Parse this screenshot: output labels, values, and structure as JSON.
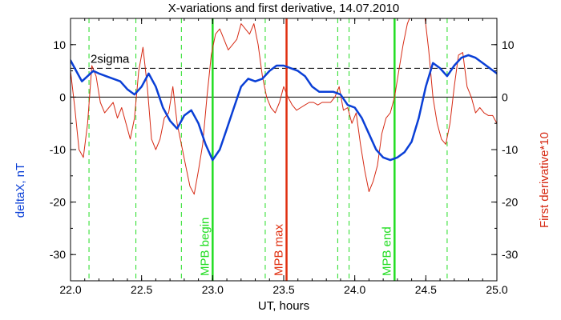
{
  "chart_data": {
    "type": "line",
    "title": "X-variations and first derivative, 14.07.2010",
    "xlabel": "UT, hours",
    "ylabel_left": "deltaX, nT",
    "ylabel_right": "First derivative*10",
    "xlim": [
      22.0,
      25.0
    ],
    "ylim": [
      -35,
      15
    ],
    "x_ticks": [
      22.0,
      22.5,
      23.0,
      23.5,
      24.0,
      24.5,
      25.0
    ],
    "x_tick_labels": [
      "22.0",
      "22.5",
      "23.0",
      "23.5",
      "24.0",
      "24.5",
      "25.0"
    ],
    "y_ticks": [
      10,
      0,
      -10,
      -20,
      -30
    ],
    "y_tick_labels": [
      "10",
      "0",
      "-10",
      "-20",
      "-30"
    ],
    "colors": {
      "deltaX": "#0a3fd6",
      "derivative": "#d62a14",
      "green": "#22dd22",
      "red_marker": "#e03010",
      "axis": "#000000"
    },
    "reference_lines": {
      "zero": 0,
      "sigma_value": 5.5,
      "sigma_label": "2sigma"
    },
    "dashed_markers": [
      22.13,
      22.46,
      22.78,
      23.37,
      23.88,
      23.96,
      24.65
    ],
    "solid_markers": [
      {
        "x": 23.0,
        "label": "MPB begin",
        "color": "#22dd22"
      },
      {
        "x": 23.52,
        "label": "MPB max",
        "color": "#e03010"
      },
      {
        "x": 24.28,
        "label": "MPB end",
        "color": "#22dd22"
      }
    ],
    "series": [
      {
        "key": "deltaX",
        "x": [
          22.0,
          22.04,
          22.08,
          22.12,
          22.16,
          22.2,
          22.25,
          22.3,
          22.35,
          22.4,
          22.45,
          22.5,
          22.55,
          22.6,
          22.65,
          22.7,
          22.75,
          22.8,
          22.85,
          22.9,
          22.95,
          23.0,
          23.05,
          23.1,
          23.15,
          23.2,
          23.25,
          23.3,
          23.35,
          23.4,
          23.45,
          23.5,
          23.55,
          23.6,
          23.65,
          23.7,
          23.75,
          23.8,
          23.85,
          23.9,
          23.95,
          24.0,
          24.05,
          24.1,
          24.15,
          24.2,
          24.25,
          24.3,
          24.35,
          24.4,
          24.45,
          24.5,
          24.55,
          24.6,
          24.65,
          24.7,
          24.75,
          24.8,
          24.85,
          24.9,
          24.95,
          25.0
        ],
        "y": [
          7.0,
          5.0,
          3.0,
          4.0,
          5.0,
          4.5,
          4.0,
          3.5,
          3.0,
          1.5,
          0.5,
          2.0,
          4.5,
          2.0,
          -2.0,
          -4.5,
          -6.0,
          -3.5,
          -2.5,
          -5.0,
          -9.0,
          -12.0,
          -10.0,
          -6.0,
          -2.0,
          2.0,
          3.5,
          3.0,
          3.5,
          5.0,
          6.0,
          6.0,
          5.5,
          5.0,
          4.0,
          2.0,
          1.0,
          1.0,
          1.0,
          0.5,
          -1.5,
          -2.0,
          -4.0,
          -7.0,
          -10.0,
          -11.5,
          -12.0,
          -11.5,
          -10.5,
          -8.5,
          -4.0,
          2.0,
          6.5,
          5.5,
          4.0,
          6.0,
          7.5,
          8.0,
          7.5,
          6.5,
          5.5,
          4.5
        ]
      },
      {
        "key": "derivative",
        "x": [
          22.0,
          22.03,
          22.06,
          22.09,
          22.12,
          22.15,
          22.18,
          22.21,
          22.24,
          22.27,
          22.3,
          22.33,
          22.36,
          22.39,
          22.42,
          22.45,
          22.48,
          22.51,
          22.54,
          22.57,
          22.6,
          22.63,
          22.66,
          22.69,
          22.72,
          22.75,
          22.78,
          22.81,
          22.84,
          22.87,
          22.9,
          22.93,
          22.96,
          22.99,
          23.02,
          23.05,
          23.08,
          23.11,
          23.14,
          23.17,
          23.2,
          23.23,
          23.26,
          23.29,
          23.32,
          23.35,
          23.38,
          23.41,
          23.44,
          23.47,
          23.5,
          23.53,
          23.56,
          23.59,
          23.62,
          23.65,
          23.68,
          23.71,
          23.74,
          23.77,
          23.8,
          23.83,
          23.86,
          23.89,
          23.92,
          23.95,
          23.98,
          24.01,
          24.04,
          24.07,
          24.1,
          24.13,
          24.16,
          24.19,
          24.22,
          24.25,
          24.28,
          24.31,
          24.34,
          24.37,
          24.4,
          24.43,
          24.46,
          24.49,
          24.52,
          24.55,
          24.58,
          24.61,
          24.64,
          24.67,
          24.7,
          24.73,
          24.76,
          24.79,
          24.82,
          24.85,
          24.88,
          24.91,
          24.94,
          24.97,
          25.0
        ],
        "y": [
          5.0,
          -2.0,
          -10.0,
          -11.5,
          -5.0,
          6.0,
          4.0,
          -1.0,
          -3.0,
          -2.0,
          -1.0,
          -4.0,
          -2.0,
          -5.0,
          -8.0,
          -4.0,
          5.0,
          9.5,
          2.0,
          -8.0,
          -10.0,
          -8.0,
          -4.0,
          -3.0,
          2.0,
          -5.0,
          -9.0,
          -13.0,
          -17.0,
          -18.5,
          -14.0,
          -9.0,
          0.0,
          8.0,
          12.0,
          13.0,
          11.0,
          9.0,
          10.0,
          11.0,
          14.0,
          13.0,
          12.0,
          14.0,
          10.0,
          4.0,
          0.0,
          -2.0,
          -3.0,
          -1.0,
          2.0,
          0.0,
          -1.5,
          -2.5,
          -2.0,
          -1.5,
          -1.0,
          -1.0,
          -1.5,
          -1.0,
          -1.0,
          -1.0,
          0.0,
          2.0,
          -2.5,
          -2.0,
          -5.0,
          -3.0,
          -9.0,
          -14.0,
          -18.0,
          -16.0,
          -13.0,
          -7.0,
          -4.0,
          -3.0,
          0.0,
          5.0,
          10.0,
          14.0,
          16.0,
          17.0,
          18.0,
          16.0,
          9.0,
          0.0,
          -5.0,
          -8.0,
          -9.0,
          -5.0,
          2.0,
          8.0,
          8.5,
          2.0,
          0.0,
          -3.0,
          -2.0,
          -3.0,
          -3.5,
          -3.5,
          -5.0
        ]
      }
    ]
  }
}
